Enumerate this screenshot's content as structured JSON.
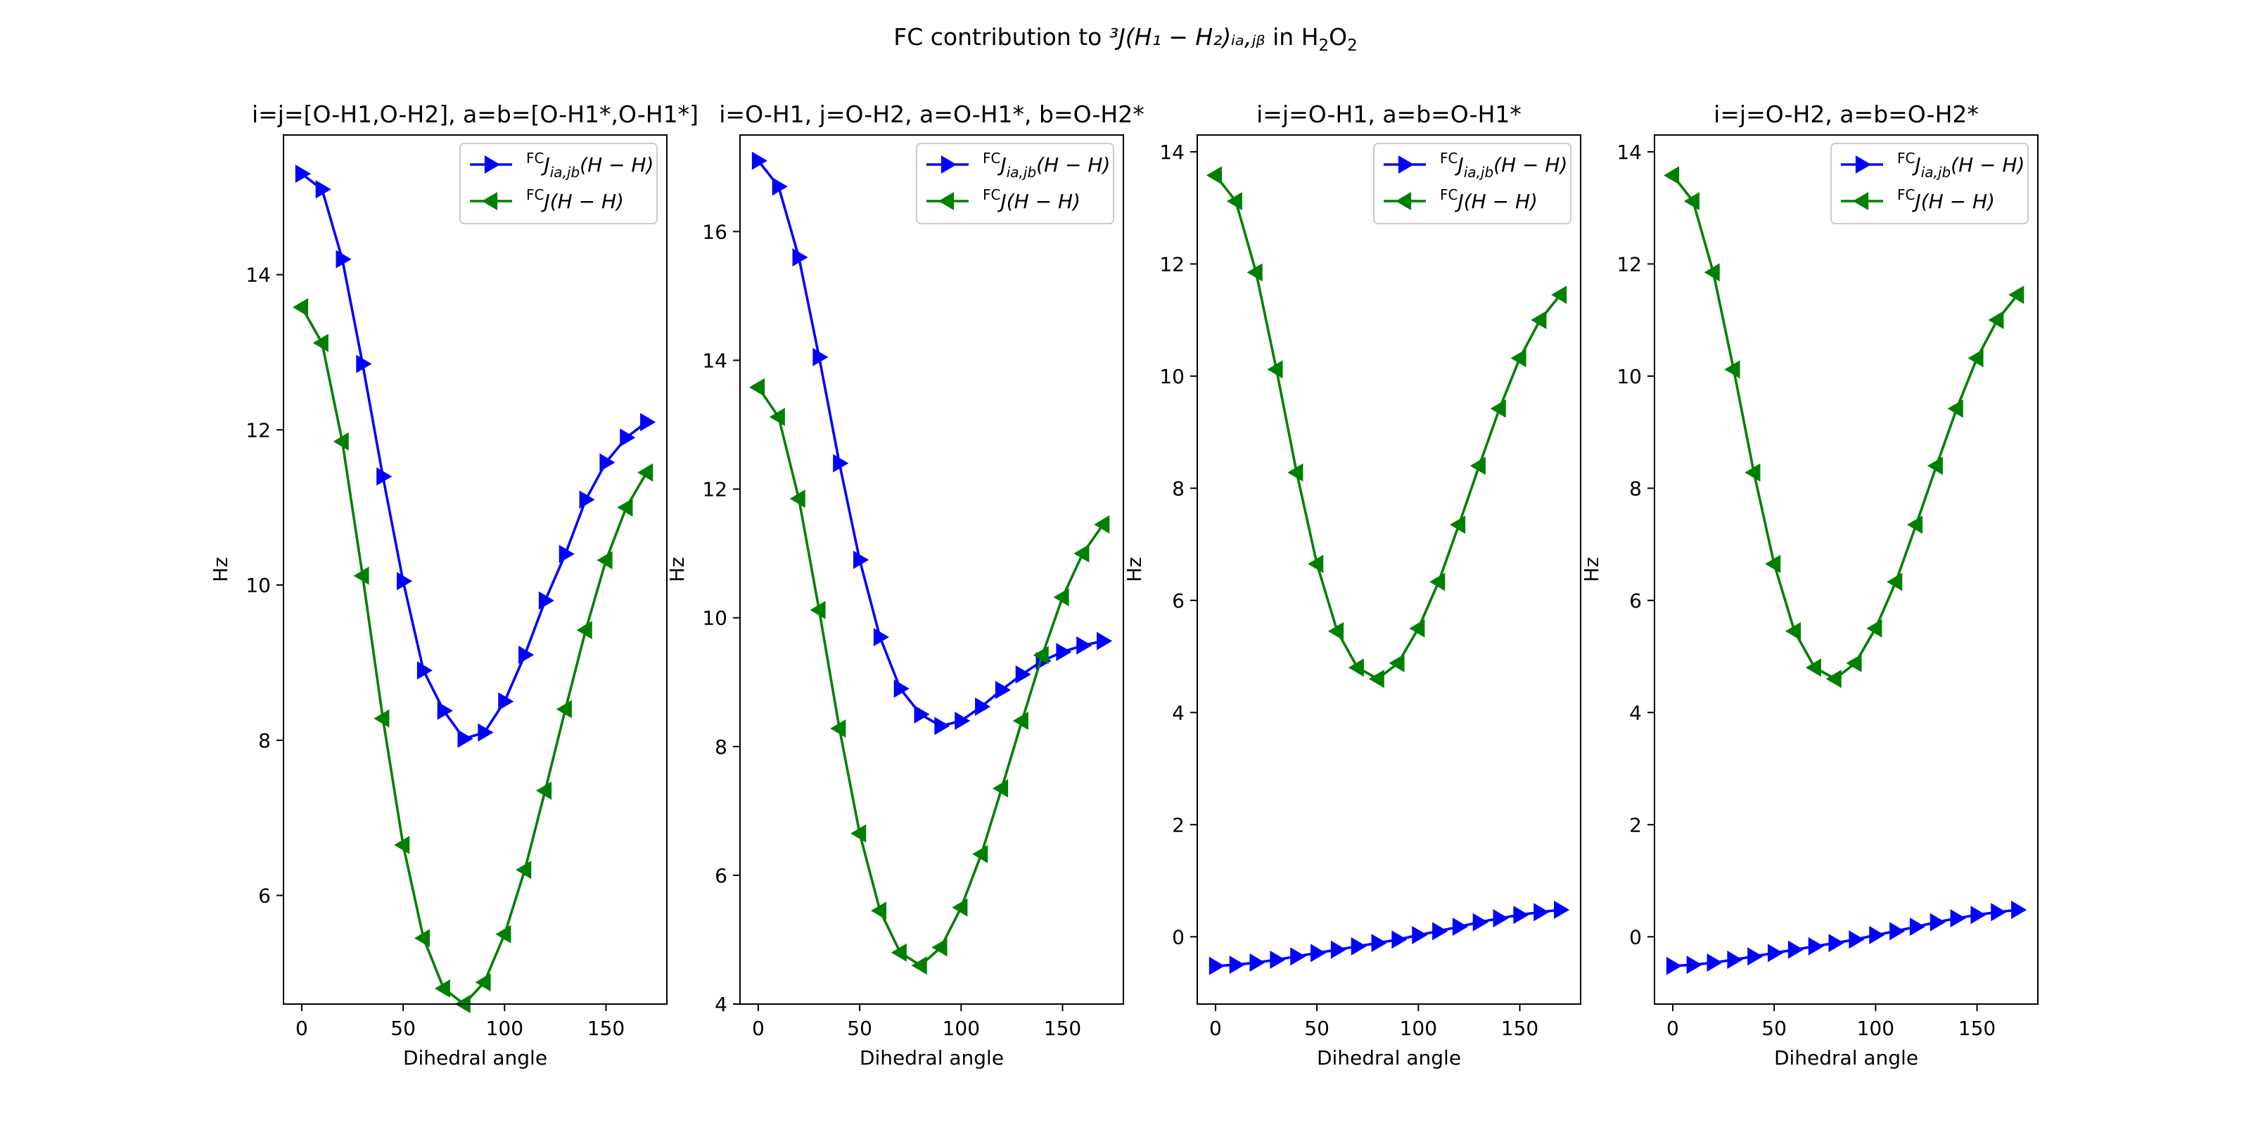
{
  "figure": {
    "title_prefix": "FC contribution to ",
    "title_math": "³J(H₁ − H₂)ᵢₐ,ⱼᵦ",
    "title_mid": " in H",
    "title_sub2": "2",
    "title_o": "O",
    "title_sub2b": "2"
  },
  "chart_data": [
    {
      "type": "line",
      "title": "i=j=[O-H1,O-H2], a=b=[O-H1*,O-H1*]",
      "xlabel": "Dihedral angle",
      "ylabel": "Hz",
      "xlim": [
        -9,
        180
      ],
      "ylim": [
        4.6,
        15.8
      ],
      "xticks": [
        0,
        50,
        100,
        150
      ],
      "yticks": [
        6,
        8,
        10,
        12,
        14
      ],
      "x": [
        0,
        10,
        20,
        30,
        40,
        50,
        60,
        70,
        80,
        90,
        100,
        110,
        120,
        130,
        140,
        150,
        160,
        170
      ],
      "legend": "upper right",
      "series": [
        {
          "name": "FCJia,jb(H−H)",
          "legend_base": "J",
          "legend_sup": "FC",
          "legend_sub": "ia,jb",
          "legend_tail": "(H − H)",
          "color": "#0000ff",
          "marker": "triangle-right",
          "values": [
            15.3,
            15.1,
            14.2,
            12.85,
            11.4,
            10.05,
            8.9,
            8.38,
            8.02,
            8.1,
            8.5,
            9.1,
            9.8,
            10.4,
            11.1,
            11.58,
            11.9,
            12.1
          ]
        },
        {
          "name": "FCJ(H−H)",
          "legend_base": "J",
          "legend_sup": "FC",
          "legend_sub": "",
          "legend_tail": "(H − H)",
          "color": "#008000",
          "marker": "triangle-left",
          "values": [
            13.58,
            13.12,
            11.85,
            10.12,
            8.28,
            6.65,
            5.45,
            4.8,
            4.6,
            4.88,
            5.5,
            6.33,
            7.35,
            8.4,
            9.42,
            10.32,
            11.0,
            11.45
          ]
        }
      ]
    },
    {
      "type": "line",
      "title": "i=O-H1, j=O-H2, a=O-H1*, b=O-H2*",
      "xlabel": "Dihedral angle",
      "ylabel": "Hz",
      "xlim": [
        -9,
        180
      ],
      "ylim": [
        4.0,
        17.5
      ],
      "xticks": [
        0,
        50,
        100,
        150
      ],
      "yticks": [
        4,
        6,
        8,
        10,
        12,
        14,
        16
      ],
      "x": [
        0,
        10,
        20,
        30,
        40,
        50,
        60,
        70,
        80,
        90,
        100,
        110,
        120,
        130,
        140,
        150,
        160,
        170
      ],
      "legend": "upper right",
      "series": [
        {
          "name": "FCJia,jb(H−H)",
          "legend_base": "J",
          "legend_sup": "FC",
          "legend_sub": "ia,jb",
          "legend_tail": "(H − H)",
          "color": "#0000ff",
          "marker": "triangle-right",
          "values": [
            17.1,
            16.7,
            15.6,
            14.05,
            12.4,
            10.9,
            9.7,
            8.9,
            8.5,
            8.32,
            8.4,
            8.62,
            8.88,
            9.12,
            9.33,
            9.47,
            9.57,
            9.64
          ]
        },
        {
          "name": "FCJ(H−H)",
          "legend_base": "J",
          "legend_sup": "FC",
          "legend_sub": "",
          "legend_tail": "(H − H)",
          "color": "#008000",
          "marker": "triangle-left",
          "values": [
            13.58,
            13.12,
            11.85,
            10.12,
            8.28,
            6.65,
            5.45,
            4.8,
            4.6,
            4.88,
            5.5,
            6.33,
            7.35,
            8.4,
            9.42,
            10.32,
            11.0,
            11.45
          ]
        }
      ]
    },
    {
      "type": "line",
      "title": "i=j=O-H1, a=b=O-H1*",
      "xlabel": "Dihedral angle",
      "ylabel": "Hz",
      "xlim": [
        -9,
        180
      ],
      "ylim": [
        -1.2,
        14.3
      ],
      "xticks": [
        0,
        50,
        100,
        150
      ],
      "yticks": [
        0,
        2,
        4,
        6,
        8,
        10,
        12,
        14
      ],
      "x": [
        0,
        10,
        20,
        30,
        40,
        50,
        60,
        70,
        80,
        90,
        100,
        110,
        120,
        130,
        140,
        150,
        160,
        170
      ],
      "legend": "upper right",
      "series": [
        {
          "name": "FCJia,jb(H−H)",
          "legend_base": "J",
          "legend_sup": "FC",
          "legend_sub": "ia,jb",
          "legend_tail": "(H − H)",
          "color": "#0000ff",
          "marker": "triangle-right",
          "values": [
            -0.52,
            -0.5,
            -0.46,
            -0.41,
            -0.35,
            -0.29,
            -0.23,
            -0.17,
            -0.11,
            -0.05,
            0.03,
            0.1,
            0.18,
            0.26,
            0.33,
            0.39,
            0.44,
            0.48
          ]
        },
        {
          "name": "FCJ(H−H)",
          "legend_base": "J",
          "legend_sup": "FC",
          "legend_sub": "",
          "legend_tail": "(H − H)",
          "color": "#008000",
          "marker": "triangle-left",
          "values": [
            13.58,
            13.12,
            11.85,
            10.12,
            8.28,
            6.65,
            5.45,
            4.8,
            4.6,
            4.88,
            5.5,
            6.33,
            7.35,
            8.4,
            9.42,
            10.32,
            11.0,
            11.45
          ]
        }
      ]
    },
    {
      "type": "line",
      "title": "i=j=O-H2, a=b=O-H2*",
      "xlabel": "Dihedral angle",
      "ylabel": "Hz",
      "xlim": [
        -9,
        180
      ],
      "ylim": [
        -1.2,
        14.3
      ],
      "xticks": [
        0,
        50,
        100,
        150
      ],
      "yticks": [
        0,
        2,
        4,
        6,
        8,
        10,
        12,
        14
      ],
      "x": [
        0,
        10,
        20,
        30,
        40,
        50,
        60,
        70,
        80,
        90,
        100,
        110,
        120,
        130,
        140,
        150,
        160,
        170
      ],
      "legend": "upper right",
      "series": [
        {
          "name": "FCJia,jb(H−H)",
          "legend_base": "J",
          "legend_sup": "FC",
          "legend_sub": "ia,jb",
          "legend_tail": "(H − H)",
          "color": "#0000ff",
          "marker": "triangle-right",
          "values": [
            -0.52,
            -0.5,
            -0.46,
            -0.41,
            -0.35,
            -0.29,
            -0.23,
            -0.17,
            -0.11,
            -0.05,
            0.03,
            0.1,
            0.18,
            0.26,
            0.33,
            0.39,
            0.44,
            0.48
          ]
        },
        {
          "name": "FCJ(H−H)",
          "legend_base": "J",
          "legend_sup": "FC",
          "legend_sub": "",
          "legend_tail": "(H − H)",
          "color": "#008000",
          "marker": "triangle-left",
          "values": [
            13.58,
            13.12,
            11.85,
            10.12,
            8.28,
            6.65,
            5.45,
            4.8,
            4.6,
            4.88,
            5.5,
            6.33,
            7.35,
            8.4,
            9.42,
            10.32,
            11.0,
            11.45
          ]
        }
      ]
    }
  ]
}
